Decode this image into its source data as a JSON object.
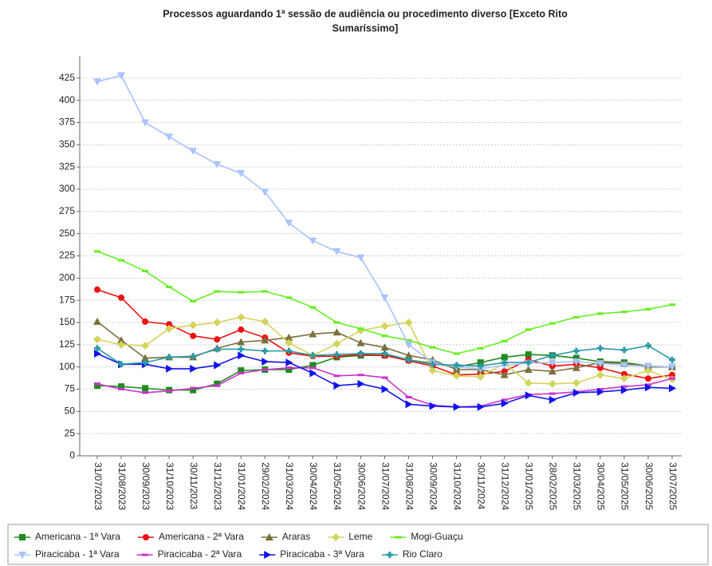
{
  "chart_data": {
    "type": "line",
    "title": [
      "Processos aguardando 1ª sessão de audiência ou procedimento diverso [Exceto Rito",
      "Sumaríssimo]"
    ],
    "categories": [
      "31/07/2023",
      "31/08/2023",
      "30/09/2023",
      "31/10/2023",
      "30/11/2023",
      "31/12/2023",
      "31/01/2024",
      "29/02/2024",
      "31/03/2024",
      "30/04/2024",
      "31/05/2024",
      "30/06/2024",
      "31/07/2024",
      "31/08/2024",
      "30/09/2024",
      "31/10/2024",
      "30/11/2024",
      "31/12/2024",
      "31/01/2025",
      "28/02/2025",
      "31/03/2025",
      "30/04/2025",
      "31/05/2025",
      "30/06/2025",
      "31/07/2025"
    ],
    "ylim": [
      0,
      450
    ],
    "yticks": [
      0,
      25,
      50,
      75,
      100,
      125,
      150,
      175,
      200,
      225,
      250,
      275,
      300,
      325,
      350,
      375,
      400,
      425
    ],
    "grid": true,
    "legend": "bottom",
    "series": [
      {
        "name": "Americana - 1ª Vara",
        "color": "#1f8a1f",
        "marker": "square",
        "values": [
          79,
          78,
          76,
          74,
          74,
          81,
          96,
          97,
          97,
          102,
          111,
          113,
          113,
          108,
          104,
          100,
          105,
          111,
          114,
          113,
          110,
          106,
          105,
          101,
          100
        ]
      },
      {
        "name": "Americana - 2ª Vara",
        "color": "#ee1111",
        "marker": "circle",
        "values": [
          187,
          178,
          151,
          148,
          135,
          131,
          142,
          133,
          116,
          112,
          112,
          114,
          113,
          107,
          101,
          91,
          92,
          95,
          108,
          101,
          103,
          99,
          92,
          87,
          91
        ]
      },
      {
        "name": "Araras",
        "color": "#7b6f3a",
        "marker": "triangle",
        "values": [
          151,
          130,
          110,
          111,
          111,
          121,
          128,
          130,
          133,
          137,
          139,
          127,
          122,
          113,
          108,
          97,
          97,
          91,
          97,
          95,
          99,
          105,
          104,
          100,
          100
        ]
      },
      {
        "name": "Leme",
        "color": "#d4d45c",
        "marker": "diamond",
        "values": [
          131,
          125,
          124,
          143,
          147,
          150,
          156,
          151,
          127,
          113,
          126,
          141,
          146,
          150,
          96,
          90,
          89,
          104,
          82,
          81,
          82,
          91,
          87,
          96,
          86
        ]
      },
      {
        "name": "Mogi-Guaçu",
        "color": "#66ee22",
        "marker": "dash",
        "values": [
          230,
          220,
          208,
          190,
          174,
          185,
          184,
          185,
          178,
          167,
          150,
          143,
          135,
          130,
          122,
          115,
          121,
          129,
          142,
          149,
          156,
          160,
          162,
          165,
          170
        ]
      },
      {
        "name": "Piracicaba - 1ª Vara",
        "color": "#a9c3ff",
        "marker": "down",
        "values": [
          421,
          428,
          375,
          359,
          343,
          328,
          318,
          297,
          262,
          242,
          230,
          223,
          178,
          125,
          105,
          100,
          98,
          102,
          104,
          105,
          106,
          104,
          102,
          101,
          100
        ]
      },
      {
        "name": "Piracicaba - 2ª Vara",
        "color": "#cc33cc",
        "marker": "dash",
        "values": [
          81,
          75,
          71,
          73,
          76,
          79,
          93,
          97,
          99,
          99,
          90,
          91,
          88,
          66,
          57,
          55,
          56,
          63,
          69,
          70,
          72,
          75,
          78,
          80,
          87
        ]
      },
      {
        "name": "Piracicaba - 3ª Vara",
        "color": "#1111ee",
        "marker": "right",
        "values": [
          115,
          103,
          103,
          98,
          98,
          102,
          113,
          106,
          105,
          93,
          79,
          81,
          75,
          58,
          56,
          55,
          55,
          59,
          68,
          63,
          71,
          72,
          74,
          77,
          76
        ]
      },
      {
        "name": "Rio Claro",
        "color": "#2a9aa8",
        "marker": "cross",
        "values": [
          121,
          103,
          105,
          111,
          112,
          120,
          120,
          118,
          118,
          113,
          114,
          115,
          115,
          108,
          103,
          102,
          101,
          105,
          105,
          113,
          118,
          121,
          119,
          124,
          108
        ]
      }
    ]
  }
}
